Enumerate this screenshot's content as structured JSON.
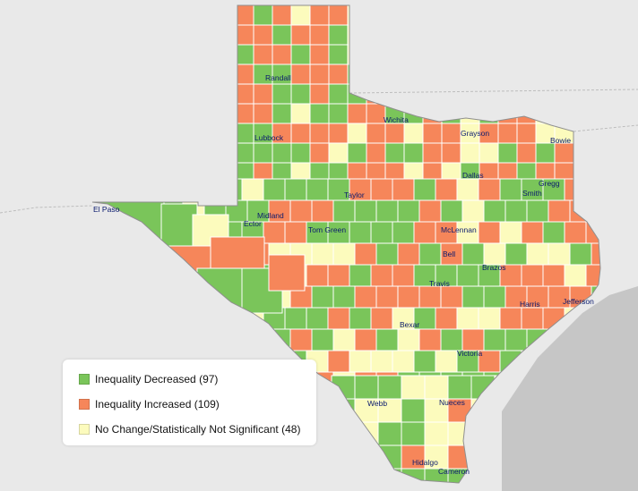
{
  "colors": {
    "decreased": "#7ac55a",
    "increased": "#f6865a",
    "no_change": "#fcfbbd",
    "water": "#c9c9c9",
    "land_outside": "#ebebeb",
    "border": "#ffffff"
  },
  "legend": {
    "items": [
      {
        "label": "Inequality Decreased (97)",
        "color_key": "decreased"
      },
      {
        "label": "Inequality Increased (109)",
        "color_key": "increased"
      },
      {
        "label": "No Change/Statistically Not Significant (48)",
        "color_key": "no_change"
      }
    ]
  },
  "cities": {
    "randall": "Randall",
    "lubbock": "Lubbock",
    "wichita": "Wichita",
    "grayson": "Grayson",
    "bowie": "Bowie",
    "dallas": "Dallas",
    "gregg": "Gregg",
    "smith": "Smith",
    "taylor": "Taylor",
    "el_paso": "El Paso",
    "midland": "Midland",
    "ector": "Ector",
    "tom_green": "Tom Green",
    "mclennan": "McLennan",
    "bell": "Bell",
    "brazos": "Brazos",
    "travis": "Travis",
    "harris": "Harris",
    "jefferson": "Jefferson",
    "bexar": "Bexar",
    "victoria": "Victoria",
    "webb": "Webb",
    "nueces": "Nueces",
    "hidalgo": "Hidalgo",
    "cameron": "Cameron"
  }
}
